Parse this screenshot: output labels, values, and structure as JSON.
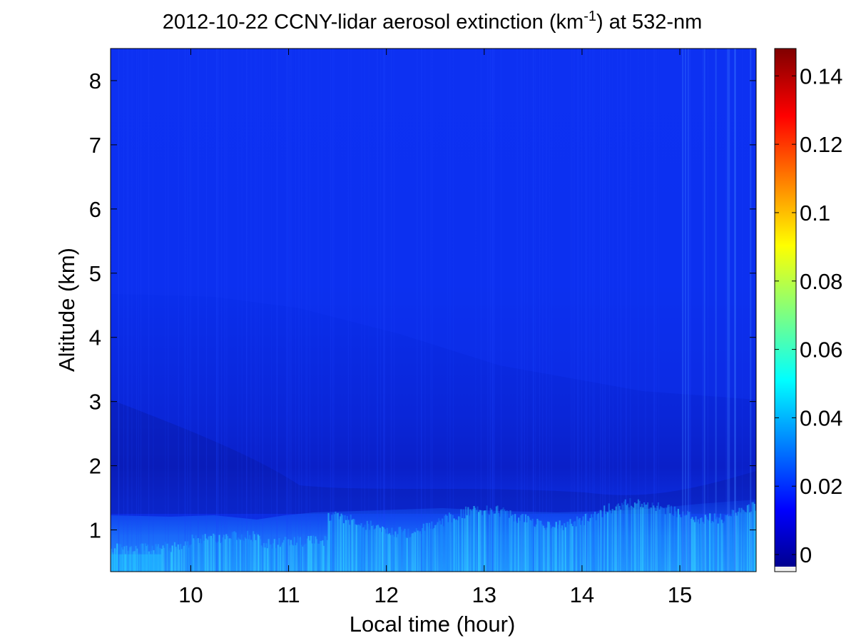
{
  "chart_data": {
    "type": "heatmap",
    "title": {
      "main": "2012-10-22 CCNY-lidar aerosol extinction (km",
      "superscript": "-1",
      "suffix": ") at 532-nm"
    },
    "xlabel": "Local time (hour)",
    "ylabel": "Altitude (km)",
    "xlim": [
      9.18,
      15.78
    ],
    "ylim": [
      0.35,
      8.5
    ],
    "x_ticks": [
      10,
      11,
      12,
      13,
      14,
      15
    ],
    "x_tick_labels": [
      "10",
      "11",
      "12",
      "13",
      "14",
      "15"
    ],
    "y_ticks": [
      1,
      2,
      3,
      4,
      5,
      6,
      7,
      8
    ],
    "y_tick_labels": [
      "1",
      "2",
      "3",
      "4",
      "5",
      "6",
      "7",
      "8"
    ],
    "colorbar": {
      "colormap": "jet",
      "range": [
        -0.005,
        0.148
      ],
      "ticks": [
        0,
        0.02,
        0.04,
        0.06,
        0.08,
        0.1,
        0.12,
        0.14
      ],
      "tick_labels": [
        "0",
        "0.02",
        "0.04",
        "0.06",
        "0.08",
        "0.1",
        "0.12",
        "0.14"
      ],
      "position": "right"
    },
    "grid": false,
    "features": [
      {
        "kind": "boundary layer aerosol",
        "time_range": [
          9.18,
          15.78
        ],
        "altitude_top_start": 0.6,
        "altitude_top_end": 1.4,
        "extinction_peak": 0.045
      },
      {
        "kind": "residual layer",
        "time_range": [
          9.18,
          15.78
        ],
        "altitude_range": [
          1.2,
          3.0
        ],
        "extinction": 0.008
      },
      {
        "kind": "free troposphere",
        "altitude_range": [
          3.0,
          8.5
        ],
        "extinction": 0.012
      }
    ]
  },
  "colors": {
    "background": "#ffffff",
    "axis": "#000000",
    "field_base": "#0a2cf0",
    "field_dark": "#0a1ec8",
    "aerosol_high": "#28c8ff"
  }
}
